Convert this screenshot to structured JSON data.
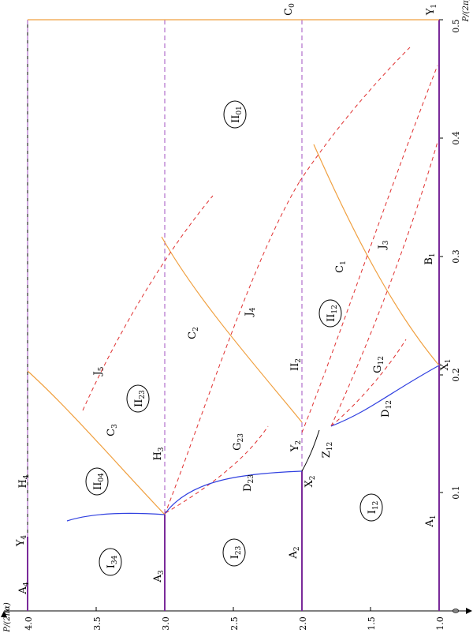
{
  "axes": {
    "x_label": "P/(2π)",
    "y_label": "P/(2πα)",
    "x_ticks": [
      "0",
      "0.1",
      "0.2",
      "0.3",
      "0.4",
      "0.5"
    ],
    "y_ticks": [
      "1.0",
      "1.5",
      "2.0",
      "2.5",
      "3.0",
      "3.5",
      "4.0"
    ]
  },
  "colors": {
    "solid_purple": "#7a2a9a",
    "dashed_purple": "#a050c0",
    "orange": "#f0a040",
    "red_dashed": "#e03030",
    "blue": "#3040e0",
    "black": "#000000"
  },
  "labels": {
    "C0": [
      "C",
      "0"
    ],
    "Y1": [
      "Y",
      "1"
    ],
    "II01": [
      "II",
      "01"
    ],
    "C1": [
      "C",
      "1"
    ],
    "J3": [
      "J",
      "3"
    ],
    "B1": [
      "B",
      "1"
    ],
    "II12": [
      "II",
      "12"
    ],
    "J4": [
      "J",
      "4"
    ],
    "G12": [
      "G",
      "12"
    ],
    "X1": [
      "X",
      "1"
    ],
    "II2": [
      "II",
      "2"
    ],
    "D12": [
      "D",
      "12"
    ],
    "C2": [
      "C",
      "2"
    ],
    "J5": [
      "J",
      "5"
    ],
    "II23": [
      "II",
      "23"
    ],
    "Z12": [
      "Z",
      "12"
    ],
    "Y2": [
      "Y",
      "2"
    ],
    "X2": [
      "X",
      "2"
    ],
    "G23": [
      "G",
      "23"
    ],
    "C3": [
      "C",
      "3"
    ],
    "H3": [
      "H",
      "3"
    ],
    "H4": [
      "H",
      "4"
    ],
    "II04": [
      "II",
      "04"
    ],
    "D23": [
      "D",
      "23"
    ],
    "I12": [
      "I",
      "12"
    ],
    "A1": [
      "A",
      "1"
    ],
    "Y4": [
      "Y",
      "4"
    ],
    "I23": [
      "I",
      "23"
    ],
    "A2": [
      "A",
      "2"
    ],
    "I34": [
      "I",
      "34"
    ],
    "A3": [
      "A",
      "3"
    ],
    "A4": [
      "A",
      "4"
    ]
  }
}
